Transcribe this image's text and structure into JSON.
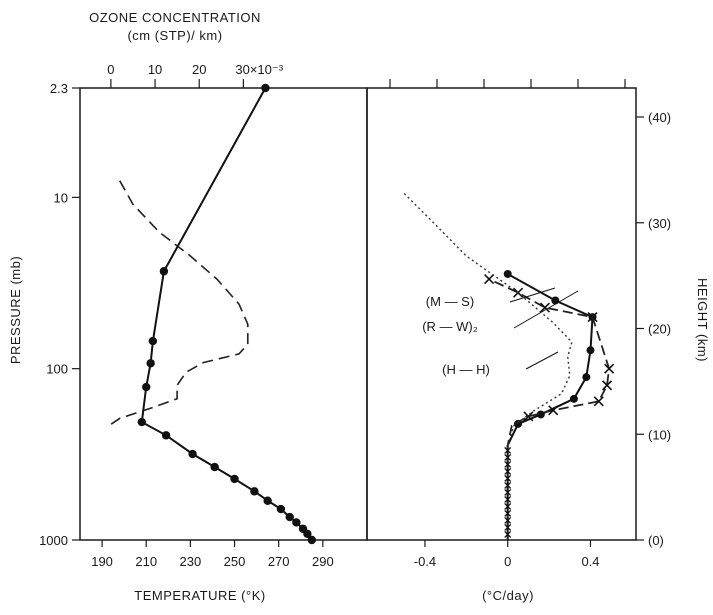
{
  "chart_data": [
    {
      "type": "line",
      "panel": "left",
      "top_axis": {
        "title_line1": "OZONE CONCENTRATION",
        "title_line2": "(cm (STP)/ km)",
        "ticks": [
          {
            "value": 0,
            "label": "0"
          },
          {
            "value": 10,
            "label": "10"
          },
          {
            "value": 20,
            "label": "20"
          },
          {
            "value": 30,
            "label": "30×10⁻³"
          }
        ],
        "range": [
          -7,
          58
        ]
      },
      "xlabel": "TEMPERATURE (°K)",
      "xlim": [
        180,
        310
      ],
      "x_ticks": [
        "190",
        "210",
        "230",
        "250",
        "270",
        "290"
      ],
      "ylabel": "PRESSURE (mb)",
      "y_scale": "log",
      "ylim": [
        2.3,
        1000
      ],
      "y_ticks": [
        {
          "value": 2.3,
          "label": "2.3"
        },
        {
          "value": 10,
          "label": "10"
        },
        {
          "value": 100,
          "label": "100"
        },
        {
          "value": 1000,
          "label": "1000"
        }
      ],
      "series": [
        {
          "style": "solid-dots",
          "quantity": "temperature",
          "points": [
            {
              "pressure": 2.3,
              "temperature": 264
            },
            {
              "pressure": 27,
              "temperature": 218
            },
            {
              "pressure": 69,
              "temperature": 213
            },
            {
              "pressure": 93,
              "temperature": 212
            },
            {
              "pressure": 128,
              "temperature": 210
            },
            {
              "pressure": 205,
              "temperature": 208
            },
            {
              "pressure": 245,
              "temperature": 219
            },
            {
              "pressure": 315,
              "temperature": 231
            },
            {
              "pressure": 375,
              "temperature": 241
            },
            {
              "pressure": 440,
              "temperature": 250
            },
            {
              "pressure": 520,
              "temperature": 259
            },
            {
              "pressure": 590,
              "temperature": 265
            },
            {
              "pressure": 660,
              "temperature": 271
            },
            {
              "pressure": 735,
              "temperature": 275
            },
            {
              "pressure": 790,
              "temperature": 278
            },
            {
              "pressure": 860,
              "temperature": 281
            },
            {
              "pressure": 920,
              "temperature": 283
            },
            {
              "pressure": 1000,
              "temperature": 285
            }
          ]
        },
        {
          "style": "dashed",
          "quantity": "ozone concentration",
          "points": [
            {
              "pressure": 8.0,
              "ozone": 2
            },
            {
              "pressure": 11,
              "ozone": 5
            },
            {
              "pressure": 16,
              "ozone": 11
            },
            {
              "pressure": 22,
              "ozone": 18
            },
            {
              "pressure": 30,
              "ozone": 24
            },
            {
              "pressure": 42,
              "ozone": 29
            },
            {
              "pressure": 55,
              "ozone": 31
            },
            {
              "pressure": 72,
              "ozone": 31
            },
            {
              "pressure": 82,
              "ozone": 29
            },
            {
              "pressure": 92,
              "ozone": 21
            },
            {
              "pressure": 105,
              "ozone": 17
            },
            {
              "pressure": 125,
              "ozone": 15
            },
            {
              "pressure": 150,
              "ozone": 15
            },
            {
              "pressure": 170,
              "ozone": 9
            },
            {
              "pressure": 195,
              "ozone": 2
            },
            {
              "pressure": 220,
              "ozone": -1
            }
          ]
        }
      ]
    },
    {
      "type": "line",
      "panel": "right",
      "xlabel": "(°C/day)",
      "xlim": [
        -0.68,
        0.62
      ],
      "x_ticks": [
        {
          "value": -0.4,
          "label": "-0.4"
        },
        {
          "value": 0,
          "label": "0"
        },
        {
          "value": 0.4,
          "label": "0.4"
        }
      ],
      "ylabel": "HEIGHT (km)",
      "y_ticks": [
        "(0)",
        "(10)",
        "(20)",
        "(30)",
        "(40)"
      ],
      "annotations": [
        "(M — S)",
        "(R — W)₂",
        "(H — H)"
      ],
      "series": [
        {
          "name": "(M — S)",
          "style": "solid-dots",
          "points": [
            {
              "pressure": 1000,
              "rate": 0
            },
            {
              "pressure": 450,
              "rate": 0
            },
            {
              "pressure": 280,
              "rate": 0
            },
            {
              "pressure": 210,
              "rate": 0.05
            },
            {
              "pressure": 185,
              "rate": 0.16
            },
            {
              "pressure": 150,
              "rate": 0.32
            },
            {
              "pressure": 112,
              "rate": 0.38
            },
            {
              "pressure": 78,
              "rate": 0.4
            },
            {
              "pressure": 50,
              "rate": 0.41
            },
            {
              "pressure": 40,
              "rate": 0.23
            },
            {
              "pressure": 28,
              "rate": 0
            }
          ]
        },
        {
          "name": "(R — W)₂",
          "style": "dashed-x",
          "points": [
            {
              "pressure": 1000,
              "rate": 0
            },
            {
              "pressure": 450,
              "rate": 0
            },
            {
              "pressure": 280,
              "rate": 0
            },
            {
              "pressure": 215,
              "rate": 0.02
            },
            {
              "pressure": 190,
              "rate": 0.1
            },
            {
              "pressure": 175,
              "rate": 0.22
            },
            {
              "pressure": 155,
              "rate": 0.44
            },
            {
              "pressure": 125,
              "rate": 0.48
            },
            {
              "pressure": 100,
              "rate": 0.49
            },
            {
              "pressure": 50,
              "rate": 0.41
            },
            {
              "pressure": 44,
              "rate": 0.18
            },
            {
              "pressure": 36,
              "rate": 0.05
            },
            {
              "pressure": 30,
              "rate": -0.09
            }
          ]
        },
        {
          "name": "(H — H)",
          "style": "dotted",
          "points": [
            {
              "pressure": 9.5,
              "rate": -0.5
            },
            {
              "pressure": 14,
              "rate": -0.36
            },
            {
              "pressure": 22,
              "rate": -0.2
            },
            {
              "pressure": 36,
              "rate": 0.05
            },
            {
              "pressure": 54,
              "rate": 0.22
            },
            {
              "pressure": 70,
              "rate": 0.31
            },
            {
              "pressure": 85,
              "rate": 0.29
            },
            {
              "pressure": 110,
              "rate": 0.3
            },
            {
              "pressure": 140,
              "rate": 0.26
            },
            {
              "pressure": 175,
              "rate": 0.13
            },
            {
              "pressure": 215,
              "rate": 0.03
            },
            {
              "pressure": 280,
              "rate": 0
            }
          ]
        }
      ]
    }
  ]
}
